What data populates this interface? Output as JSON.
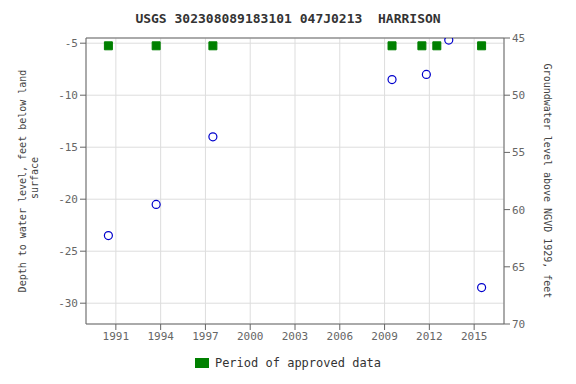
{
  "chart_data": {
    "type": "scatter",
    "title": "USGS 302308089183101 047J0213  HARRISON",
    "series": [
      {
        "color": "#0000cc",
        "marker": "circle",
        "x": [
          1990.5,
          1993.7,
          1997.5,
          2009.5,
          2011.8,
          2013.3,
          2015.5
        ],
        "values": [
          -23.5,
          -20.5,
          -14.0,
          -8.5,
          -8.0,
          -4.7,
          -28.5
        ]
      },
      {
        "name": "Period of approved data",
        "color": "#008000",
        "marker": "square",
        "x": [
          1990.5,
          1993.7,
          1997.5,
          2009.5,
          2011.5,
          2012.5,
          2015.5
        ],
        "values": [
          -5.25,
          -5.25,
          -5.25,
          -5.25,
          -5.25,
          -5.25,
          -5.25
        ]
      }
    ],
    "ylabel": "Depth to water level, feet below land\n surface",
    "y2label": "Groundwater level above NGVD 1929, feet",
    "xlim": [
      1989,
      2017
    ],
    "ylim": [
      -32,
      -4.5
    ],
    "y2lim": [
      70,
      45
    ],
    "xticks": [
      1991,
      1994,
      1997,
      2000,
      2003,
      2006,
      2009,
      2012,
      2015
    ],
    "yticks": [
      -30,
      -25,
      -20,
      -15,
      -10,
      -5
    ],
    "y2ticks": [
      70,
      65,
      60,
      55,
      50,
      45
    ],
    "grid": true,
    "legend": "bottom"
  }
}
